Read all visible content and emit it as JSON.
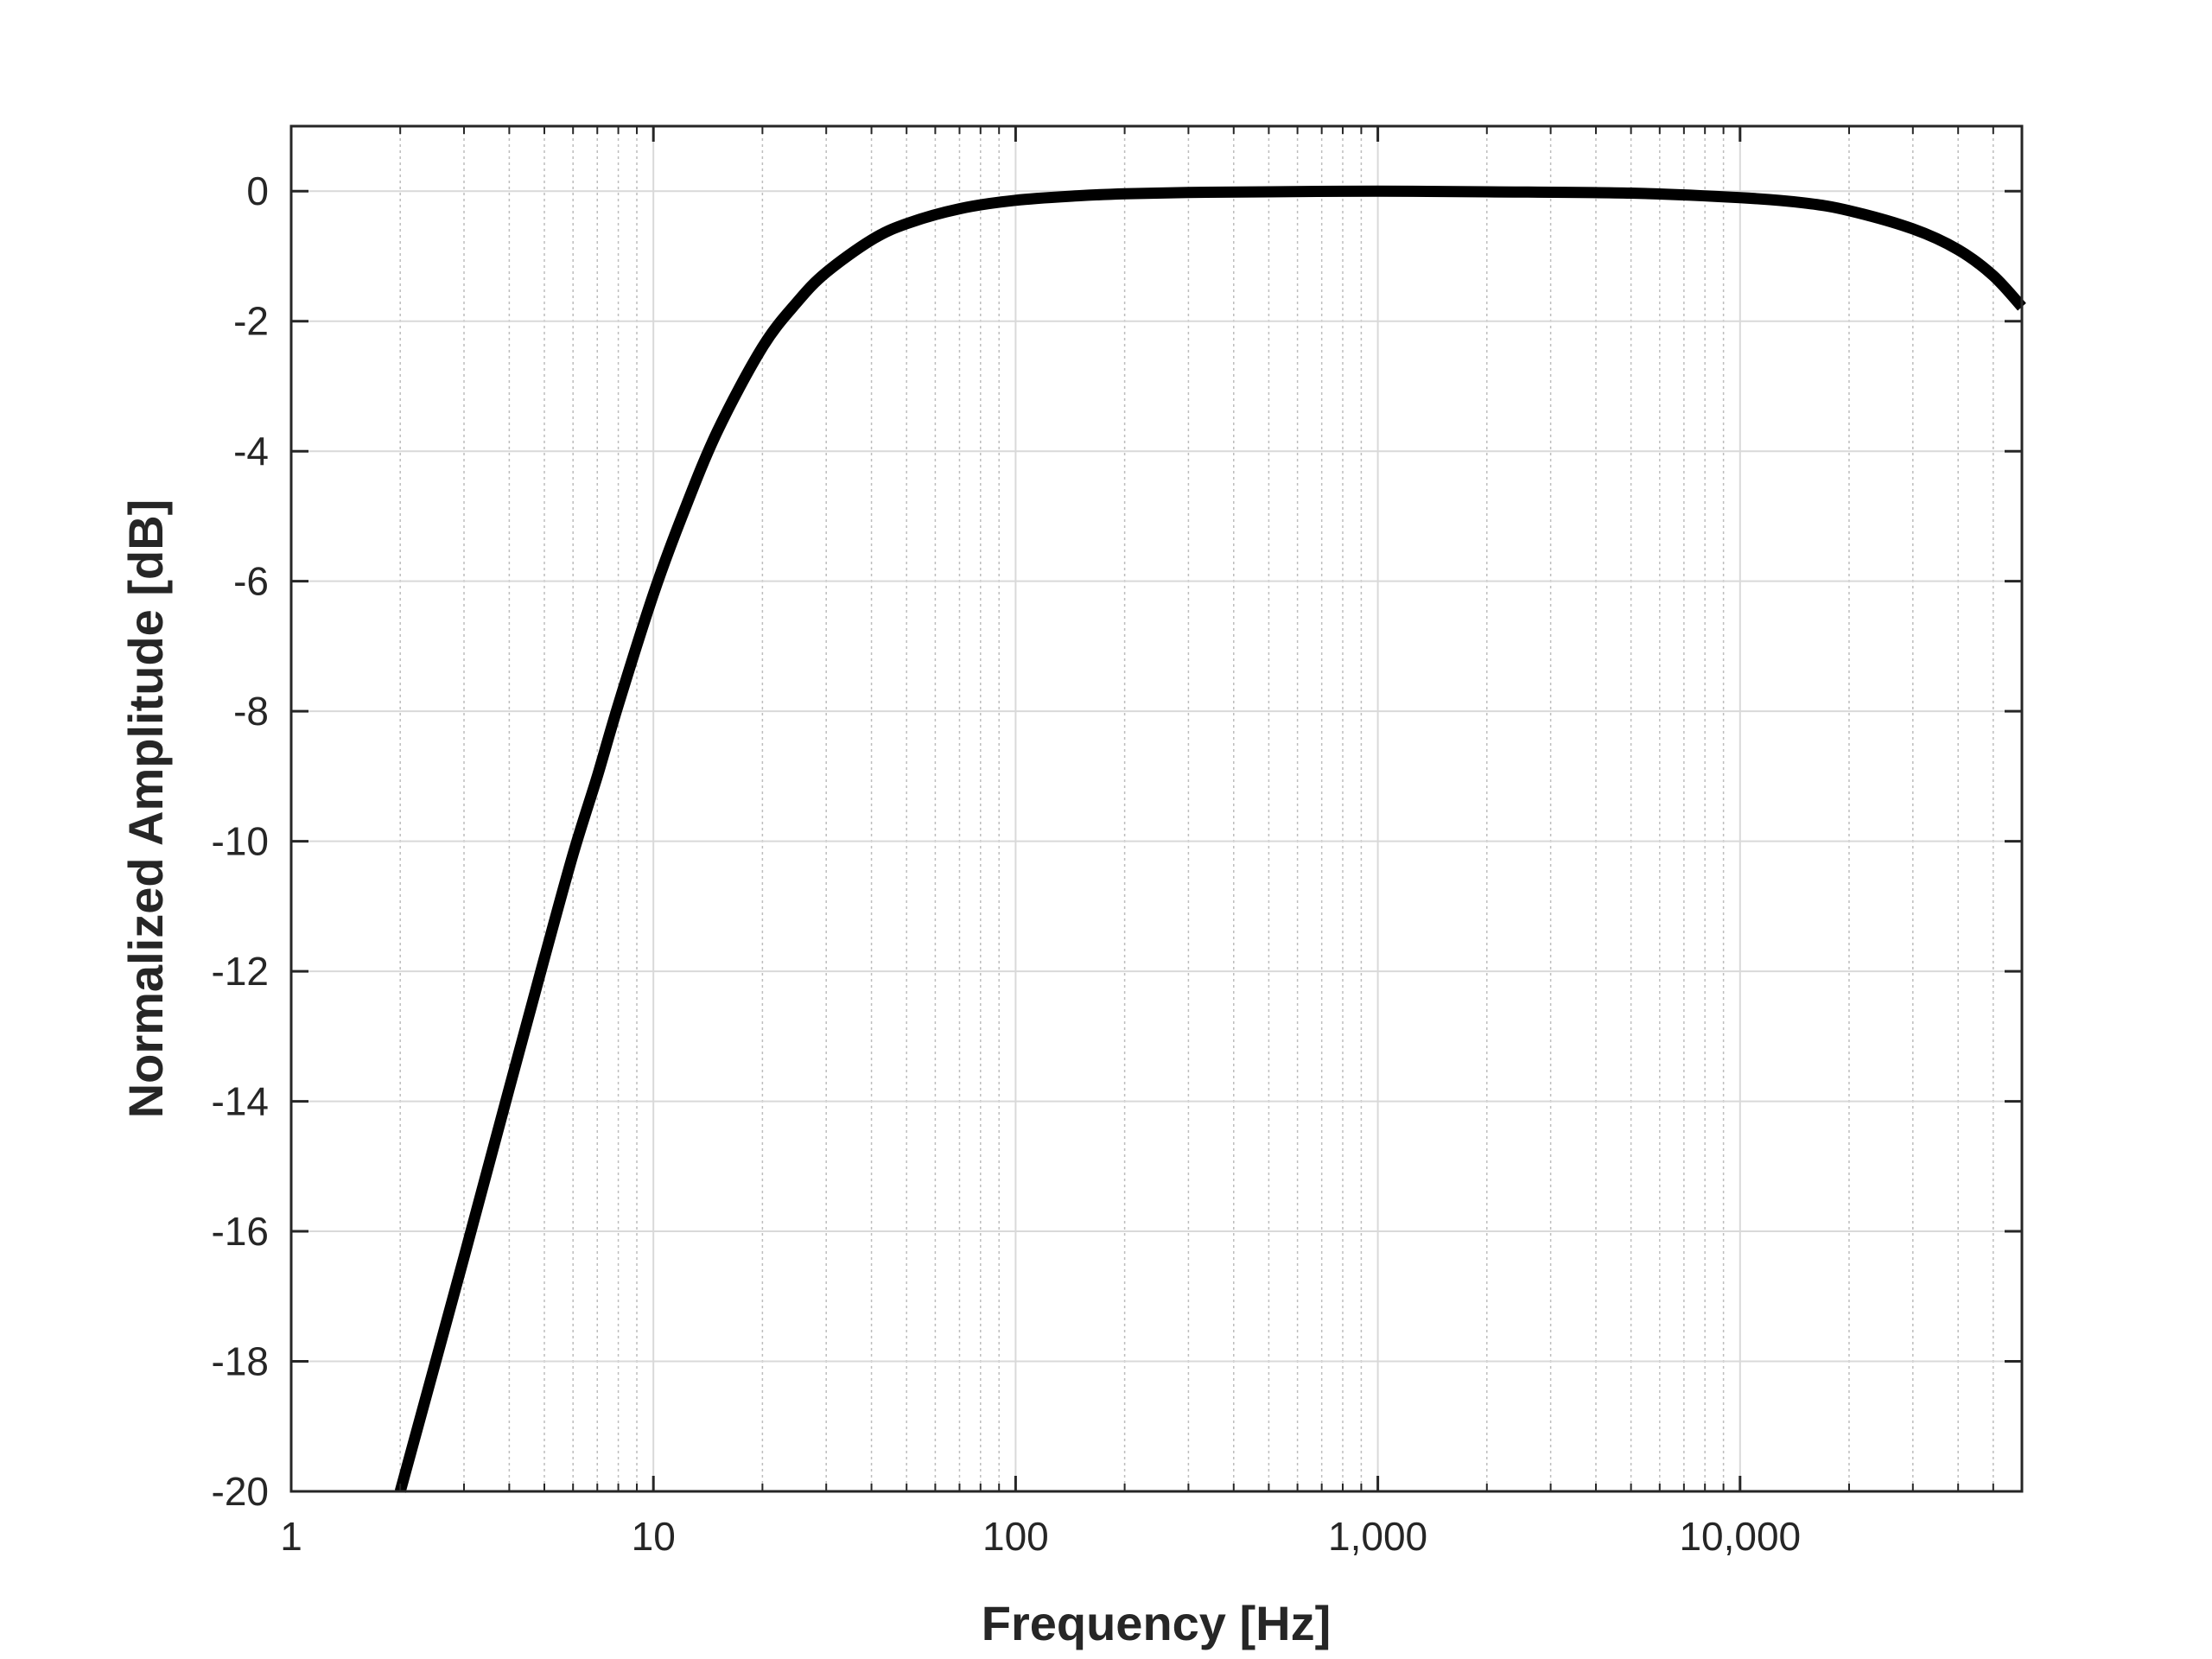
{
  "chart_data": {
    "type": "line",
    "title": "",
    "xlabel": "Frequency [Hz]",
    "ylabel": "Normalized Amplitude [dB]",
    "x_scale": "log",
    "xlim": [
      1,
      60000
    ],
    "ylim": [
      -20,
      1
    ],
    "grid": true,
    "minor_grid": true,
    "x_ticks": [
      1,
      10,
      100,
      1000,
      10000
    ],
    "x_tick_labels": [
      "1",
      "10",
      "100",
      "1,000",
      "10,000"
    ],
    "y_ticks": [
      0,
      -2,
      -4,
      -6,
      -8,
      -10,
      -12,
      -14,
      -16,
      -18,
      -20
    ],
    "y_tick_labels": [
      "0",
      "-2",
      "-4",
      "-6",
      "-8",
      "-10",
      "-12",
      "-14",
      "-16",
      "-18",
      "-20"
    ],
    "line_color": "#000000",
    "series": [
      {
        "x": [
          2,
          3,
          4,
          5,
          6,
          7,
          8,
          10,
          12,
          15,
          20,
          25,
          30,
          40,
          50,
          70,
          100,
          150,
          200,
          300,
          500,
          1000,
          2000,
          5000,
          10000,
          15000,
          20000,
          30000,
          40000,
          50000,
          60000
        ],
        "y": [
          -20.0,
          -16.4,
          -13.8,
          -11.8,
          -10.2,
          -9.0,
          -7.9,
          -6.2,
          -5.0,
          -3.7,
          -2.4,
          -1.7,
          -1.25,
          -0.75,
          -0.5,
          -0.27,
          -0.14,
          -0.07,
          -0.04,
          -0.02,
          -0.01,
          0.0,
          -0.01,
          -0.03,
          -0.1,
          -0.18,
          -0.3,
          -0.58,
          -0.9,
          -1.3,
          -1.78
        ]
      }
    ]
  }
}
